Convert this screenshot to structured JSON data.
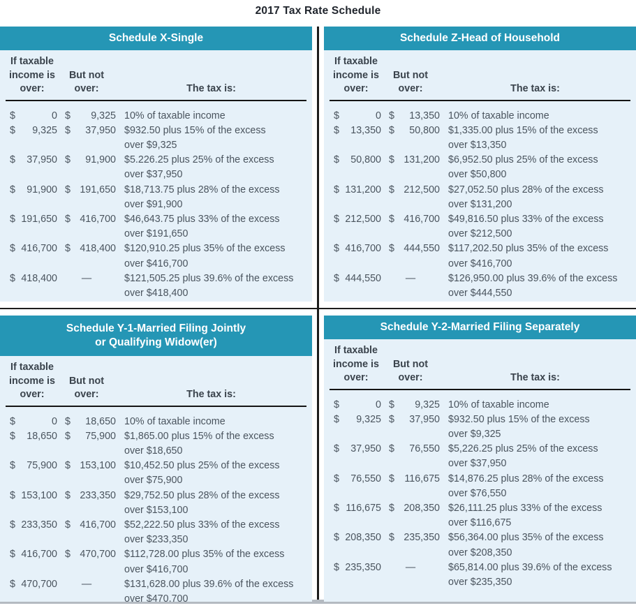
{
  "page_title": "2017 Tax Rate Schedule",
  "colors": {
    "header_teal": "#2596b5",
    "panel_bg": "#e6f1f9",
    "body_text": "#4a545e",
    "heading_text": "#3a434c",
    "title_text": "#20252d",
    "divider": "#1c1c1c",
    "bottom_strip": "#b4bac1"
  },
  "column_headers": {
    "income_over_lines": [
      "If taxable",
      "income is",
      "over:"
    ],
    "but_not_over_lines": [
      "But not",
      "over:"
    ],
    "tax_is": "The tax is:"
  },
  "schedules": [
    {
      "name": "schedule-x-single",
      "title_lines": [
        "Schedule X-Single"
      ],
      "rows": [
        {
          "over_sign": "$",
          "over": "0",
          "but_sign": "$",
          "but": "9,325",
          "tax_lines": [
            "10% of taxable income"
          ]
        },
        {
          "over_sign": "$",
          "over": "9,325",
          "but_sign": "$",
          "but": "37,950",
          "tax_lines": [
            "$932.50 plus 15% of the excess",
            "over $9,325"
          ]
        },
        {
          "over_sign": "$",
          "over": "37,950",
          "but_sign": "$",
          "but": "91,900",
          "tax_lines": [
            "$5.226.25 plus 25% of the excess",
            "over $37,950"
          ]
        },
        {
          "over_sign": "$",
          "over": "91,900",
          "but_sign": "$",
          "but": "191,650",
          "tax_lines": [
            "$18,713.75 plus 28% of the excess",
            "over $91,900"
          ]
        },
        {
          "over_sign": "$",
          "over": "191,650",
          "but_sign": "$",
          "but": "416,700",
          "tax_lines": [
            "$46,643.75 plus 33% of the excess",
            "over $191,650"
          ]
        },
        {
          "over_sign": "$",
          "over": "416,700",
          "but_sign": "$",
          "but": "418,400",
          "tax_lines": [
            "$120,910.25 plus 35% of the excess",
            "over $416,700"
          ]
        },
        {
          "over_sign": "$",
          "over": "418,400",
          "but_sign": "",
          "but": "—",
          "tax_lines": [
            "$121,505.25 plus 39.6% of the excess",
            "over $418,400"
          ]
        }
      ]
    },
    {
      "name": "schedule-z-head-of-household",
      "title_lines": [
        "Schedule Z-Head of Household"
      ],
      "rows": [
        {
          "over_sign": "$",
          "over": "0",
          "but_sign": "$",
          "but": "13,350",
          "tax_lines": [
            "10% of taxable income"
          ]
        },
        {
          "over_sign": "$",
          "over": "13,350",
          "but_sign": "$",
          "but": "50,800",
          "tax_lines": [
            "$1,335.00 plus 15% of the excess",
            "over $13,350"
          ]
        },
        {
          "over_sign": "$",
          "over": "50,800",
          "but_sign": "$",
          "but": "131,200",
          "tax_lines": [
            "$6,952.50 plus 25% of the excess",
            "over $50,800"
          ]
        },
        {
          "over_sign": "$",
          "over": "131,200",
          "but_sign": "$",
          "but": "212,500",
          "tax_lines": [
            "$27,052.50 plus 28% of the excess",
            "over $131,200"
          ]
        },
        {
          "over_sign": "$",
          "over": "212,500",
          "but_sign": "$",
          "but": "416,700",
          "tax_lines": [
            "$49,816.50 plus 33% of the excess",
            "over $212,500"
          ]
        },
        {
          "over_sign": "$",
          "over": "416,700",
          "but_sign": "$",
          "but": "444,550",
          "tax_lines": [
            "$117,202.50 plus 35% of the excess",
            "over $416,700"
          ]
        },
        {
          "over_sign": "$",
          "over": "444,550",
          "but_sign": "",
          "but": "—",
          "tax_lines": [
            "$126,950.00 plus 39.6% of the excess",
            "over $444,550"
          ]
        }
      ]
    },
    {
      "name": "schedule-y1-married-filing-jointly",
      "title_lines": [
        "Schedule Y-1-Married Filing Jointly",
        "or Qualifying Widow(er)"
      ],
      "rows": [
        {
          "over_sign": "$",
          "over": "0",
          "but_sign": "$",
          "but": "18,650",
          "tax_lines": [
            "10% of taxable income"
          ]
        },
        {
          "over_sign": "$",
          "over": "18,650",
          "but_sign": "$",
          "but": "75,900",
          "tax_lines": [
            "$1,865.00 plus 15% of the excess",
            "over $18,650"
          ]
        },
        {
          "over_sign": "$",
          "over": "75,900",
          "but_sign": "$",
          "but": "153,100",
          "tax_lines": [
            "$10,452.50 plus 25% of the excess",
            "over $75,900"
          ]
        },
        {
          "over_sign": "$",
          "over": "153,100",
          "but_sign": "$",
          "but": "233,350",
          "tax_lines": [
            "$29,752.50 plus 28% of the excess",
            "over $153,100"
          ]
        },
        {
          "over_sign": "$",
          "over": "233,350",
          "but_sign": "$",
          "but": "416,700",
          "tax_lines": [
            "$52,222.50 plus 33% of the excess",
            "over $233,350"
          ]
        },
        {
          "over_sign": "$",
          "over": "416,700",
          "but_sign": "$",
          "but": "470,700",
          "tax_lines": [
            "$112,728.00 plus 35% of the excess",
            "over $416,700"
          ]
        },
        {
          "over_sign": "$",
          "over": "470,700",
          "but_sign": "",
          "but": "—",
          "tax_lines": [
            "$131,628.00 plus 39.6% of the excess",
            "over $470,700"
          ]
        }
      ]
    },
    {
      "name": "schedule-y2-married-filing-separately",
      "title_lines": [
        "Schedule Y-2-Married Filing Separately"
      ],
      "rows": [
        {
          "over_sign": "$",
          "over": "0",
          "but_sign": "$",
          "but": "9,325",
          "tax_lines": [
            "10% of taxable income"
          ]
        },
        {
          "over_sign": "$",
          "over": "9,325",
          "but_sign": "$",
          "but": "37,950",
          "tax_lines": [
            "$932.50 plus 15% of the excess",
            "over $9,325"
          ]
        },
        {
          "over_sign": "$",
          "over": "37,950",
          "but_sign": "$",
          "but": "76,550",
          "tax_lines": [
            "$5,226.25 plus 25% of the excess",
            "over $37,950"
          ]
        },
        {
          "over_sign": "$",
          "over": "76,550",
          "but_sign": "$",
          "but": "116,675",
          "tax_lines": [
            "$14,876.25 plus 28% of the excess",
            "over $76,550"
          ]
        },
        {
          "over_sign": "$",
          "over": "116,675",
          "but_sign": "$",
          "but": "208,350",
          "tax_lines": [
            "$26,111.25 plus 33% of the excess",
            "over $116,675"
          ]
        },
        {
          "over_sign": "$",
          "over": "208,350",
          "but_sign": "$",
          "but": "235,350",
          "tax_lines": [
            "$56,364.00 plus 35% of the excess",
            "over $208,350"
          ]
        },
        {
          "over_sign": "$",
          "over": "235,350",
          "but_sign": "",
          "but": "—",
          "tax_lines": [
            "$65,814.00 plus 39.6% of the excess",
            "over $235,350"
          ]
        }
      ]
    }
  ]
}
